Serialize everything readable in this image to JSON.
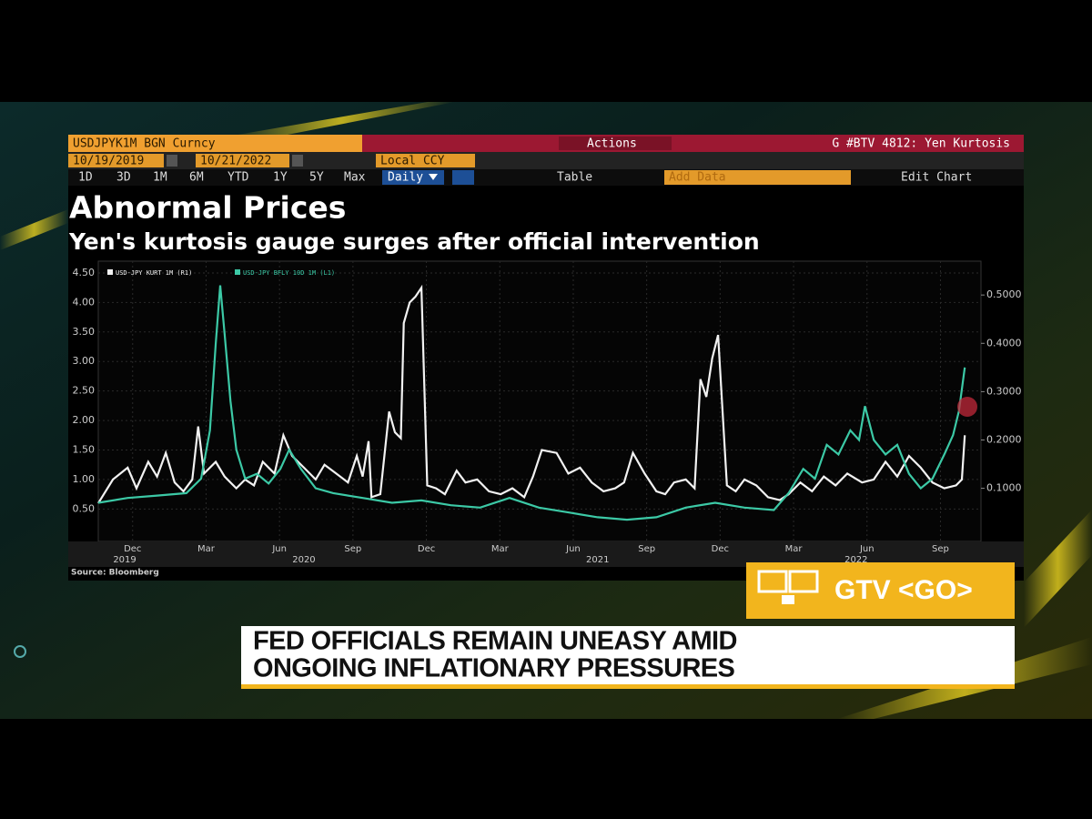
{
  "toolbar": {
    "security": "USDJPYK1M BGN Curncy",
    "actions": "Actions",
    "page": "G #BTV 4812: Yen Kurtosis",
    "start_date": "10/19/2019",
    "end_date": "10/21/2022",
    "currency": "Local CCY",
    "ranges": [
      "1D",
      "3D",
      "1M",
      "6M",
      "YTD",
      "1Y",
      "5Y",
      "Max"
    ],
    "frequency": "Daily",
    "table": "Table",
    "add_data": "Add Data",
    "edit_chart": "Edit Chart"
  },
  "chart_data": {
    "type": "line",
    "title": "Abnormal Prices",
    "subtitle": "Yen's kurtosis gauge surges after official intervention",
    "source": "Source: Bloomberg",
    "grid": true,
    "xlim": [
      2019.8,
      2022.805
    ],
    "xticks": [
      {
        "value": 2019.917,
        "label": "Dec"
      },
      {
        "value": 2020.167,
        "label": "Mar"
      },
      {
        "value": 2020.417,
        "label": "Jun"
      },
      {
        "value": 2020.667,
        "label": "Sep"
      },
      {
        "value": 2020.917,
        "label": "Dec"
      },
      {
        "value": 2021.167,
        "label": "Mar"
      },
      {
        "value": 2021.417,
        "label": "Jun"
      },
      {
        "value": 2021.667,
        "label": "Sep"
      },
      {
        "value": 2021.917,
        "label": "Dec"
      },
      {
        "value": 2022.167,
        "label": "Mar"
      },
      {
        "value": 2022.417,
        "label": "Jun"
      },
      {
        "value": 2022.667,
        "label": "Sep"
      }
    ],
    "year_labels": [
      {
        "value": 2019.89,
        "label": "2019"
      },
      {
        "value": 2020.5,
        "label": "2020"
      },
      {
        "value": 2021.5,
        "label": "2021"
      },
      {
        "value": 2022.38,
        "label": "2022"
      }
    ],
    "ylim": [
      -0.05,
      4.7
    ],
    "yticks": [
      {
        "value": 0.5,
        "label": "0.50"
      },
      {
        "value": 1,
        "label": "1.00"
      },
      {
        "value": 1.5,
        "label": "1.50"
      },
      {
        "value": 2,
        "label": "2.00"
      },
      {
        "value": 2.5,
        "label": "2.50"
      },
      {
        "value": 3,
        "label": "3.00"
      },
      {
        "value": 3.5,
        "label": "3.50"
      },
      {
        "value": 4,
        "label": "4.00"
      },
      {
        "value": 4.5,
        "label": "4.50"
      }
    ],
    "y2lim": [
      -0.01,
      0.57
    ],
    "y2ticks": [
      {
        "value": 0.1,
        "label": "0.1000"
      },
      {
        "value": 0.2,
        "label": "0.2000"
      },
      {
        "value": 0.3,
        "label": "0.3000"
      },
      {
        "value": 0.4,
        "label": "0.4000"
      },
      {
        "value": 0.5,
        "label": "0.5000"
      }
    ],
    "series": [
      {
        "name": "USD-JPY KURT 1M (R1)",
        "color": "#f2f2f2",
        "x": [
          2019.8,
          2019.85,
          2019.9,
          2019.93,
          2019.97,
          2020.0,
          2020.03,
          2020.06,
          2020.09,
          2020.12,
          2020.14,
          2020.16,
          2020.2,
          2020.23,
          2020.27,
          2020.3,
          2020.33,
          2020.36,
          2020.4,
          2020.43,
          2020.46,
          2020.5,
          2020.54,
          2020.57,
          2020.61,
          2020.65,
          2020.68,
          2020.7,
          2020.72,
          2020.73,
          2020.76,
          2020.79,
          2020.81,
          2020.83,
          2020.84,
          2020.86,
          2020.88,
          2020.9,
          2020.92,
          2020.95,
          2020.98,
          2021.02,
          2021.05,
          2021.09,
          2021.13,
          2021.17,
          2021.21,
          2021.25,
          2021.28,
          2021.31,
          2021.36,
          2021.4,
          2021.44,
          2021.48,
          2021.52,
          2021.56,
          2021.59,
          2021.62,
          2021.66,
          2021.7,
          2021.73,
          2021.76,
          2021.8,
          2021.83,
          2021.85,
          2021.87,
          2021.89,
          2021.91,
          2021.94,
          2021.97,
          2022.0,
          2022.04,
          2022.08,
          2022.12,
          2022.15,
          2022.19,
          2022.23,
          2022.27,
          2022.31,
          2022.35,
          2022.4,
          2022.44,
          2022.48,
          2022.52,
          2022.56,
          2022.6,
          2022.64,
          2022.68,
          2022.72,
          2022.74,
          2022.75
        ],
        "values": [
          0.6,
          1.0,
          1.2,
          0.85,
          1.3,
          1.05,
          1.45,
          0.95,
          0.8,
          1.0,
          1.9,
          1.1,
          1.3,
          1.05,
          0.85,
          1.0,
          0.9,
          1.3,
          1.1,
          1.75,
          1.4,
          1.2,
          1.0,
          1.25,
          1.1,
          0.95,
          1.4,
          1.05,
          1.65,
          0.7,
          0.75,
          2.15,
          1.8,
          1.7,
          3.65,
          4.0,
          4.1,
          4.25,
          0.9,
          0.85,
          0.75,
          1.15,
          0.95,
          1.0,
          0.8,
          0.75,
          0.85,
          0.7,
          1.05,
          1.5,
          1.45,
          1.1,
          1.2,
          0.95,
          0.8,
          0.85,
          0.95,
          1.45,
          1.1,
          0.8,
          0.75,
          0.95,
          1.0,
          0.85,
          2.7,
          2.4,
          3.05,
          3.45,
          0.9,
          0.8,
          1.0,
          0.9,
          0.7,
          0.65,
          0.75,
          0.95,
          0.8,
          1.05,
          0.9,
          1.1,
          0.95,
          1.0,
          1.3,
          1.05,
          1.4,
          1.2,
          0.95,
          0.85,
          0.9,
          1.0,
          1.75
        ]
      },
      {
        "name": "USD-JPY BFLY 10D 1M (L1)",
        "color": "#3cc9a6",
        "axis": "y2",
        "x": [
          2019.8,
          2019.9,
          2020.0,
          2020.1,
          2020.15,
          2020.18,
          2020.2,
          2020.215,
          2020.23,
          2020.25,
          2020.27,
          2020.3,
          2020.34,
          2020.38,
          2020.42,
          2020.45,
          2020.49,
          2020.54,
          2020.6,
          2020.7,
          2020.8,
          2020.9,
          2021.0,
          2021.1,
          2021.2,
          2021.3,
          2021.4,
          2021.5,
          2021.6,
          2021.7,
          2021.8,
          2021.9,
          2022.0,
          2022.1,
          2022.15,
          2022.2,
          2022.24,
          2022.28,
          2022.32,
          2022.36,
          2022.39,
          2022.41,
          2022.44,
          2022.48,
          2022.52,
          2022.56,
          2022.6,
          2022.64,
          2022.68,
          2022.71,
          2022.73,
          2022.75
        ],
        "values": [
          0.07,
          0.08,
          0.085,
          0.09,
          0.12,
          0.22,
          0.4,
          0.52,
          0.42,
          0.28,
          0.18,
          0.12,
          0.13,
          0.11,
          0.14,
          0.18,
          0.14,
          0.1,
          0.09,
          0.08,
          0.07,
          0.075,
          0.065,
          0.06,
          0.08,
          0.06,
          0.05,
          0.04,
          0.035,
          0.04,
          0.06,
          0.07,
          0.06,
          0.055,
          0.09,
          0.14,
          0.12,
          0.19,
          0.17,
          0.22,
          0.2,
          0.27,
          0.2,
          0.17,
          0.19,
          0.13,
          0.1,
          0.12,
          0.17,
          0.21,
          0.26,
          0.35
        ]
      }
    ]
  },
  "banner": {
    "label": "GTV <GO>"
  },
  "headline": {
    "lines": [
      "FED OFFICIALS REMAIN UNEASY AMID",
      "ONGOING INFLATIONARY PRESSURES"
    ]
  }
}
